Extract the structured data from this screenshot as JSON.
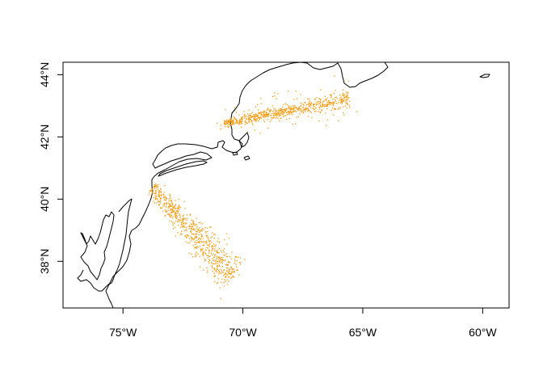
{
  "chart_data": {
    "type": "scatter",
    "title": "",
    "xlabel": "",
    "ylabel": "",
    "xlim": [
      -77.5,
      -58.9
    ],
    "ylim": [
      36.5,
      44.4
    ],
    "grid": false,
    "point_color": "#f39c12",
    "basemap": "east coast of North America (coastline only)",
    "x_ticks": [
      {
        "value": -75,
        "label": "75°W"
      },
      {
        "value": -70,
        "label": "70°W"
      },
      {
        "value": -65,
        "label": "65°W"
      },
      {
        "value": -60,
        "label": "60°W"
      }
    ],
    "y_ticks": [
      {
        "value": 38,
        "label": "38°N"
      },
      {
        "value": 40,
        "label": "40°N"
      },
      {
        "value": 42,
        "label": "42°N"
      },
      {
        "value": 44,
        "label": "44°N"
      }
    ],
    "tracks": [
      {
        "from": [
          -73.8,
          40.4
        ],
        "to": [
          -70.4,
          37.5
        ],
        "spread": 0.25,
        "outlier": 0.35
      },
      {
        "from": [
          -70.8,
          42.45
        ],
        "to": [
          -65.6,
          43.25
        ],
        "spread": 0.12,
        "outlier": 0.45
      }
    ]
  }
}
